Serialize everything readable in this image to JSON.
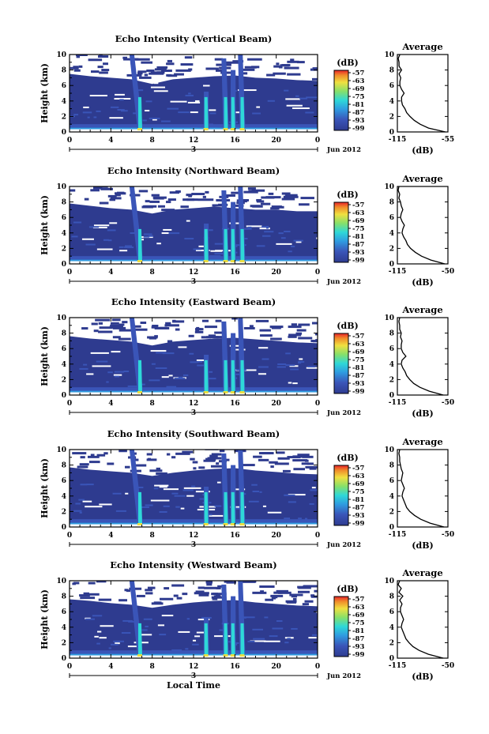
{
  "chart_data": [
    {
      "type": "heatmap",
      "title": "Echo Intensity (Vertical Beam)",
      "xlabel": "",
      "ylabel": "Height (km)",
      "xlim": [
        0,
        24
      ],
      "ylim": [
        0,
        10
      ],
      "xticks": [
        "0",
        "4",
        "8",
        "12",
        "16",
        "20",
        "0"
      ],
      "yticks": [
        "0",
        "2",
        "4",
        "6",
        "8",
        "10"
      ],
      "date_marker": "3",
      "date_label": "Jun 2012",
      "colorbar": {
        "unit": "(dB)",
        "labels": [
          "-57",
          "-63",
          "-69",
          "-75",
          "-81",
          "-87",
          "-93",
          "-99"
        ]
      },
      "cloud_top_km": [
        7.5,
        7.2,
        7.0,
        6.8,
        6.2,
        6.8,
        7.0,
        7.2,
        7.3,
        7.0,
        6.9,
        6.7,
        6.6
      ],
      "rain_shafts": [
        {
          "x": 6.8,
          "top_km": 10.0,
          "from_x": 5.8
        },
        {
          "x": 13.2,
          "top_km": 5.2,
          "from_x": 13.0
        },
        {
          "x": 15.1,
          "top_km": 9.5,
          "from_x": 14.7
        },
        {
          "x": 15.8,
          "top_km": 8.0,
          "from_x": 15.6
        },
        {
          "x": 16.7,
          "top_km": 10.0,
          "from_x": 16.3
        }
      ],
      "average": {
        "title": "Average",
        "xlabel": "(dB)",
        "xlim": [
          -115,
          -55
        ],
        "xtick_labels": [
          "-115",
          "-55"
        ],
        "profile_h_km": [
          0,
          0.5,
          1,
          1.5,
          2,
          2.5,
          3,
          3.5,
          4,
          4.5,
          5,
          5.5,
          6,
          6.5,
          7,
          7.5,
          8,
          8.5,
          9,
          9.5,
          10
        ],
        "profile_db": [
          -58,
          -78,
          -88,
          -95,
          -100,
          -104,
          -106,
          -109,
          -110,
          -110,
          -107,
          -110,
          -112,
          -112,
          -111,
          -113,
          -110,
          -113,
          -113,
          -114,
          -112
        ]
      }
    },
    {
      "type": "heatmap",
      "title": "Echo Intensity (Northward Beam)",
      "xlabel": "",
      "ylabel": "Height (km)",
      "xlim": [
        0,
        24
      ],
      "ylim": [
        0,
        10
      ],
      "xticks": [
        "0",
        "4",
        "8",
        "12",
        "16",
        "20",
        "0"
      ],
      "yticks": [
        "0",
        "2",
        "4",
        "6",
        "8",
        "10"
      ],
      "date_marker": "3",
      "date_label": "Jun 2012",
      "colorbar": {
        "unit": "(dB)",
        "labels": [
          "-57",
          "-63",
          "-69",
          "-75",
          "-81",
          "-87",
          "-93",
          "-99"
        ]
      },
      "cloud_top_km": [
        7.8,
        7.5,
        7.2,
        7.0,
        6.5,
        7.0,
        7.2,
        7.4,
        7.2,
        7.0,
        7.0,
        6.8,
        6.8
      ],
      "rain_shafts": [
        {
          "x": 6.8,
          "top_km": 10.0,
          "from_x": 5.8
        },
        {
          "x": 13.2,
          "top_km": 5.2,
          "from_x": 13.0
        },
        {
          "x": 15.1,
          "top_km": 9.5,
          "from_x": 14.7
        },
        {
          "x": 15.8,
          "top_km": 8.0,
          "from_x": 15.6
        },
        {
          "x": 16.7,
          "top_km": 10.0,
          "from_x": 16.3
        }
      ],
      "average": {
        "title": "Average",
        "xlabel": "(dB)",
        "xlim": [
          -115,
          -50
        ],
        "xtick_labels": [
          "-115",
          "-50"
        ],
        "profile_h_km": [
          0,
          0.5,
          1,
          1.5,
          2,
          2.5,
          3,
          3.5,
          4,
          4.5,
          5,
          5.5,
          6,
          6.5,
          7,
          7.5,
          8,
          8.5,
          9,
          9.5,
          10
        ],
        "profile_db": [
          -54,
          -72,
          -84,
          -92,
          -98,
          -102,
          -104,
          -107,
          -109,
          -108,
          -106,
          -109,
          -111,
          -110,
          -108,
          -110,
          -111,
          -113,
          -112,
          -114,
          -113
        ]
      }
    },
    {
      "type": "heatmap",
      "title": "Echo Intensity (Eastward Beam)",
      "xlabel": "",
      "ylabel": "Height (km)",
      "xlim": [
        0,
        24
      ],
      "ylim": [
        0,
        10
      ],
      "xticks": [
        "0",
        "4",
        "8",
        "12",
        "16",
        "20",
        "0"
      ],
      "yticks": [
        "0",
        "2",
        "4",
        "6",
        "8",
        "10"
      ],
      "date_marker": "3",
      "date_label": "Jun 2012",
      "colorbar": {
        "unit": "(dB)",
        "labels": [
          "-57",
          "-63",
          "-69",
          "-75",
          "-81",
          "-87",
          "-93",
          "-99"
        ]
      },
      "cloud_top_km": [
        7.6,
        7.3,
        7.1,
        6.9,
        6.4,
        6.9,
        7.1,
        7.3,
        7.4,
        7.2,
        7.0,
        6.8,
        6.7
      ],
      "rain_shafts": [
        {
          "x": 6.8,
          "top_km": 10.0,
          "from_x": 5.8
        },
        {
          "x": 13.2,
          "top_km": 5.2,
          "from_x": 13.0
        },
        {
          "x": 15.1,
          "top_km": 9.5,
          "from_x": 14.7
        },
        {
          "x": 15.8,
          "top_km": 8.0,
          "from_x": 15.6
        },
        {
          "x": 16.7,
          "top_km": 10.0,
          "from_x": 16.3
        }
      ],
      "average": {
        "title": "Average",
        "xlabel": "(dB)",
        "xlim": [
          -115,
          -50
        ],
        "xtick_labels": [
          "-115",
          "-50"
        ],
        "profile_h_km": [
          0,
          0.5,
          1,
          1.5,
          2,
          2.5,
          3,
          3.5,
          4,
          4.5,
          5,
          5.5,
          6,
          6.5,
          7,
          7.5,
          8,
          8.5,
          9,
          9.5,
          10
        ],
        "profile_db": [
          -56,
          -74,
          -86,
          -94,
          -99,
          -103,
          -105,
          -108,
          -110,
          -109,
          -104,
          -108,
          -110,
          -110,
          -109,
          -111,
          -110,
          -112,
          -112,
          -113,
          -112
        ]
      }
    },
    {
      "type": "heatmap",
      "title": "Echo Intensity (Southward Beam)",
      "xlabel": "",
      "ylabel": "Height (km)",
      "xlim": [
        0,
        24
      ],
      "ylim": [
        0,
        10
      ],
      "xticks": [
        "0",
        "4",
        "8",
        "12",
        "16",
        "20",
        "0"
      ],
      "yticks": [
        "0",
        "2",
        "4",
        "6",
        "8",
        "10"
      ],
      "date_marker": "3",
      "date_label": "Jun 2012",
      "colorbar": {
        "unit": "(dB)",
        "labels": [
          "-57",
          "-63",
          "-69",
          "-75",
          "-81",
          "-87",
          "-93",
          "-99"
        ]
      },
      "cloud_top_km": [
        7.7,
        7.4,
        7.2,
        7.0,
        6.6,
        7.0,
        7.3,
        7.5,
        7.6,
        7.3,
        7.1,
        6.9,
        6.8
      ],
      "rain_shafts": [
        {
          "x": 6.8,
          "top_km": 10.0,
          "from_x": 5.8
        },
        {
          "x": 13.2,
          "top_km": 5.2,
          "from_x": 13.0
        },
        {
          "x": 15.1,
          "top_km": 9.5,
          "from_x": 14.7
        },
        {
          "x": 15.8,
          "top_km": 8.0,
          "from_x": 15.6
        },
        {
          "x": 16.7,
          "top_km": 10.0,
          "from_x": 16.3
        }
      ],
      "average": {
        "title": "Average",
        "xlabel": "(dB)",
        "xlim": [
          -115,
          -50
        ],
        "xtick_labels": [
          "-115",
          "-50"
        ],
        "profile_h_km": [
          0,
          0.5,
          1,
          1.5,
          2,
          2.5,
          3,
          3.5,
          4,
          4.5,
          5,
          5.5,
          6,
          6.5,
          7,
          7.5,
          8,
          8.5,
          9,
          9.5,
          10
        ],
        "profile_db": [
          -55,
          -73,
          -85,
          -93,
          -99,
          -103,
          -105,
          -107,
          -109,
          -108,
          -106,
          -108,
          -110,
          -109,
          -108,
          -110,
          -111,
          -112,
          -112,
          -113,
          -112
        ]
      }
    },
    {
      "type": "heatmap",
      "title": "Echo Intensity (Westward Beam)",
      "xlabel": "Local Time",
      "ylabel": "Height (km)",
      "xlim": [
        0,
        24
      ],
      "ylim": [
        0,
        10
      ],
      "xticks": [
        "0",
        "4",
        "8",
        "12",
        "16",
        "20",
        "0"
      ],
      "yticks": [
        "0",
        "2",
        "4",
        "6",
        "8",
        "10"
      ],
      "date_marker": "3",
      "date_label": "Jun 2012",
      "colorbar": {
        "unit": "(dB)",
        "labels": [
          "-57",
          "-63",
          "-69",
          "-75",
          "-81",
          "-87",
          "-93",
          "-99"
        ]
      },
      "cloud_top_km": [
        7.6,
        7.4,
        7.1,
        6.9,
        6.5,
        6.9,
        7.2,
        7.4,
        7.5,
        7.2,
        7.0,
        6.8,
        6.7
      ],
      "rain_shafts": [
        {
          "x": 6.8,
          "top_km": 10.0,
          "from_x": 5.8
        },
        {
          "x": 13.2,
          "top_km": 5.2,
          "from_x": 13.0
        },
        {
          "x": 15.1,
          "top_km": 9.5,
          "from_x": 14.7
        },
        {
          "x": 15.8,
          "top_km": 8.0,
          "from_x": 15.6
        },
        {
          "x": 16.7,
          "top_km": 10.0,
          "from_x": 16.3
        }
      ],
      "average": {
        "title": "Average",
        "xlabel": "(dB)",
        "xlim": [
          -115,
          -50
        ],
        "xtick_labels": [
          "-115",
          "-50"
        ],
        "profile_h_km": [
          0,
          0.5,
          1,
          1.5,
          2,
          2.5,
          3,
          3.5,
          4,
          4.5,
          5,
          5.5,
          6,
          6.5,
          7,
          7.5,
          8,
          8.5,
          9,
          9.5,
          10
        ],
        "profile_db": [
          -56,
          -75,
          -87,
          -95,
          -100,
          -104,
          -106,
          -108,
          -110,
          -109,
          -107,
          -109,
          -111,
          -111,
          -109,
          -112,
          -108,
          -113,
          -110,
          -114,
          -112
        ]
      }
    }
  ]
}
